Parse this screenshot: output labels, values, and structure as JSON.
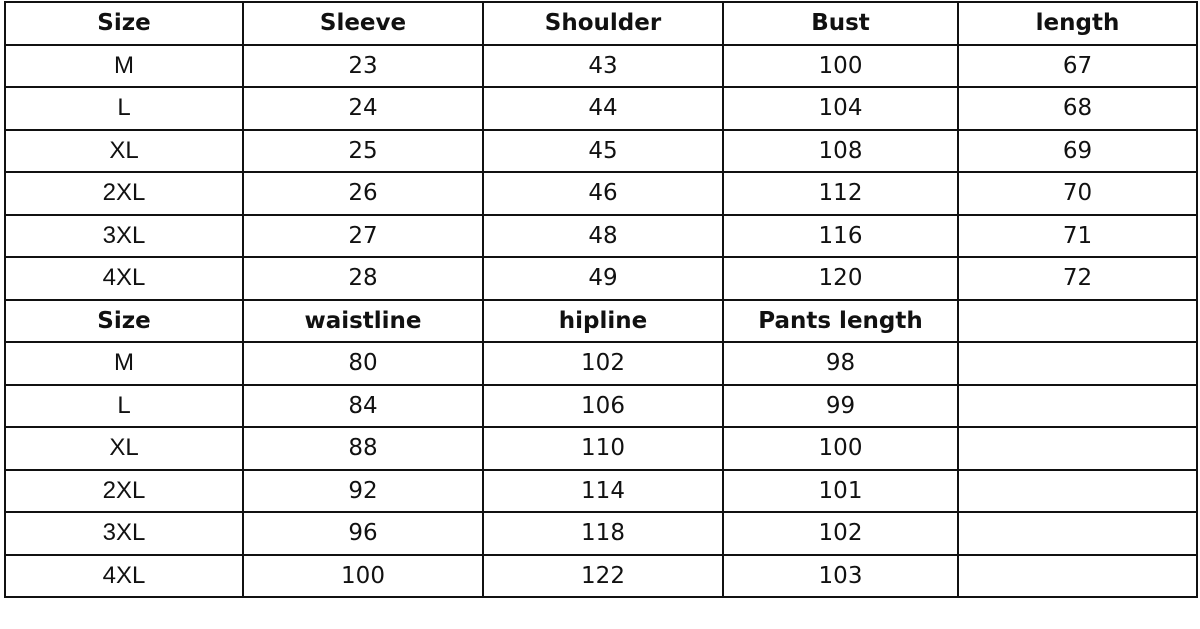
{
  "top_table": {
    "headers": [
      "Size",
      "Sleeve",
      "Shoulder",
      "Bust",
      "length"
    ],
    "rows": [
      [
        "M",
        "23",
        "43",
        "100",
        "67"
      ],
      [
        "L",
        "24",
        "44",
        "104",
        "68"
      ],
      [
        "XL",
        "25",
        "45",
        "108",
        "69"
      ],
      [
        "2XL",
        "26",
        "46",
        "112",
        "70"
      ],
      [
        "3XL",
        "27",
        "48",
        "116",
        "71"
      ],
      [
        "4XL",
        "28",
        "49",
        "120",
        "72"
      ]
    ]
  },
  "bottom_table": {
    "headers": [
      "Size",
      "waistline",
      "hipline",
      "Pants length",
      ""
    ],
    "rows": [
      [
        "M",
        "80",
        "102",
        "98",
        ""
      ],
      [
        "L",
        "84",
        "106",
        "99",
        ""
      ],
      [
        "XL",
        "88",
        "110",
        "100",
        ""
      ],
      [
        "2XL",
        "92",
        "114",
        "101",
        ""
      ],
      [
        "3XL",
        "96",
        "118",
        "102",
        ""
      ],
      [
        "4XL",
        "100",
        "122",
        "103",
        ""
      ]
    ]
  }
}
